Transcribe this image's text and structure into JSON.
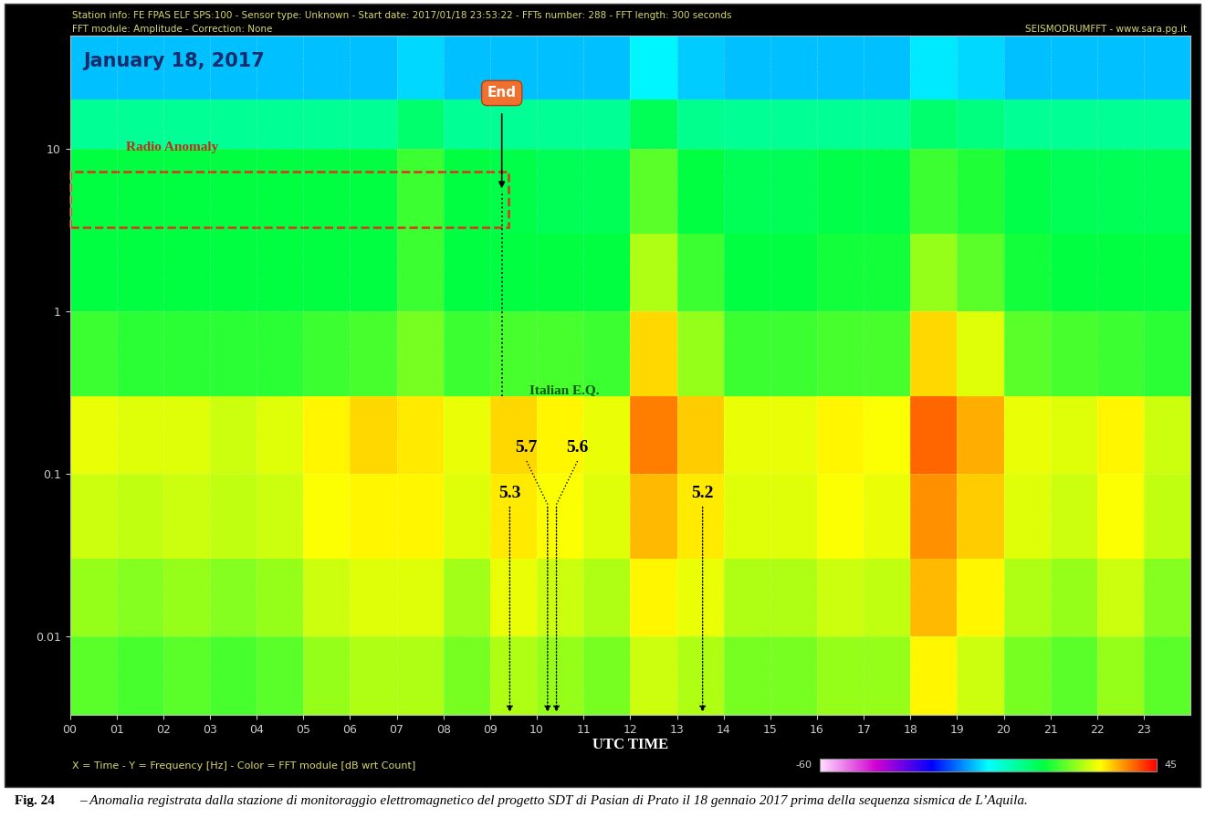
{
  "chart_data": {
    "type": "heatmap",
    "header": [
      "Station info: FE FPAS ELF SPS:100 - Sensor type: Unknown - Start date: 2017/01/18 23:53:22 - FFTs number: 288 - FFT length: 300 seconds",
      "FFT module: Amplitude - Correction: None"
    ],
    "brand": "SEISMODRUMFFT - www.sara.pg.it",
    "title": "January 18, 2017",
    "xlabel": "UTC TIME",
    "axis_note": "X = Time - Y = Frequency [Hz] - Color = FFT module [dB wrt Count]",
    "log": "y",
    "grid": true,
    "xlim": [
      0,
      24
    ],
    "xticks": [
      {
        "value": 0,
        "label": "00"
      },
      {
        "value": 1,
        "label": "01"
      },
      {
        "value": 2,
        "label": "02"
      },
      {
        "value": 3,
        "label": "03"
      },
      {
        "value": 4,
        "label": "04"
      },
      {
        "value": 5,
        "label": "05"
      },
      {
        "value": 6,
        "label": "06"
      },
      {
        "value": 7,
        "label": "07"
      },
      {
        "value": 8,
        "label": "08"
      },
      {
        "value": 9,
        "label": "09"
      },
      10,
      11,
      12,
      13,
      14,
      15,
      16,
      17,
      18,
      19,
      20,
      21,
      22,
      23
    ],
    "ylim": [
      0.0033,
      50
    ],
    "yticks": [
      0.01,
      0.1,
      1,
      10
    ],
    "time_bins": [
      0,
      1,
      2,
      3,
      4,
      5,
      6,
      7,
      8,
      9,
      10,
      11,
      12,
      13,
      14,
      15,
      16,
      17,
      18,
      19,
      20,
      21,
      22,
      23,
      24
    ],
    "freq_bins": [
      0.0033,
      0.01,
      0.03,
      0.1,
      0.3,
      1,
      3,
      10,
      20,
      50
    ],
    "cells": [
      [
        16,
        15,
        16,
        15,
        16,
        20,
        22,
        22,
        18,
        22,
        20,
        18,
        24,
        22,
        18,
        18,
        20,
        20,
        28,
        24,
        18,
        16,
        20,
        16
      ],
      [
        20,
        19,
        20,
        19,
        20,
        24,
        25,
        25,
        21,
        26,
        24,
        22,
        28,
        26,
        22,
        22,
        24,
        23,
        32,
        28,
        22,
        20,
        24,
        19
      ],
      [
        24,
        23,
        24,
        23,
        24,
        27,
        28,
        28,
        25,
        29,
        27,
        25,
        32,
        29,
        25,
        25,
        27,
        26,
        35,
        31,
        25,
        24,
        27,
        23
      ],
      [
        26,
        25,
        25,
        24,
        25,
        28,
        30,
        29,
        26,
        30,
        28,
        26,
        36,
        31,
        26,
        26,
        28,
        27,
        38,
        33,
        26,
        25,
        28,
        24
      ],
      [
        14,
        13,
        13,
        13,
        13,
        14,
        15,
        18,
        14,
        15,
        15,
        14,
        30,
        20,
        14,
        14,
        15,
        15,
        30,
        25,
        16,
        15,
        14,
        13
      ],
      [
        10,
        10,
        10,
        10,
        10,
        10,
        10,
        14,
        10,
        10,
        10,
        10,
        22,
        14,
        10,
        10,
        11,
        11,
        20,
        16,
        11,
        10,
        10,
        10
      ],
      [
        10,
        10,
        10,
        10,
        10,
        10,
        10,
        14,
        10,
        9,
        8,
        8,
        16,
        10,
        8,
        8,
        9,
        9,
        14,
        12,
        9,
        8,
        8,
        8
      ],
      [
        2,
        2,
        2,
        2,
        2,
        2,
        2,
        6,
        2,
        2,
        2,
        2,
        8,
        3,
        2,
        2,
        2,
        2,
        6,
        4,
        2,
        2,
        2,
        2
      ],
      [
        -12,
        -12,
        -12,
        -12,
        -12,
        -12,
        -12,
        -10,
        -12,
        -12,
        -12,
        -12,
        -8,
        -11,
        -12,
        -12,
        -12,
        -12,
        -9,
        -10,
        -12,
        -12,
        -12,
        -12
      ]
    ],
    "colorbar": {
      "range": [
        -60,
        45
      ],
      "ticks": [
        -60,
        45
      ]
    },
    "anomaly": {
      "label": "Radio Anomaly",
      "x": [
        0,
        9.4
      ],
      "y": [
        3.3,
        7.2
      ]
    },
    "end": {
      "label": "End",
      "time": 9.25
    },
    "events_label": "Italian E.Q.",
    "events": [
      {
        "label": "5.3",
        "time": 9.42
      },
      {
        "label": "5.7",
        "time": 10.23
      },
      {
        "label": "5.6",
        "time": 10.42
      },
      {
        "label": "5.2",
        "time": 13.55
      }
    ],
    "caption": {
      "label": "Fig. 24",
      "text": "– Anomalia registrata dalla stazione di monitoraggio elettromagnetico del progetto SDT di Pasian di Prato il 18 gennaio 2017 prima della sequenza sismica de L’Aquila."
    }
  }
}
